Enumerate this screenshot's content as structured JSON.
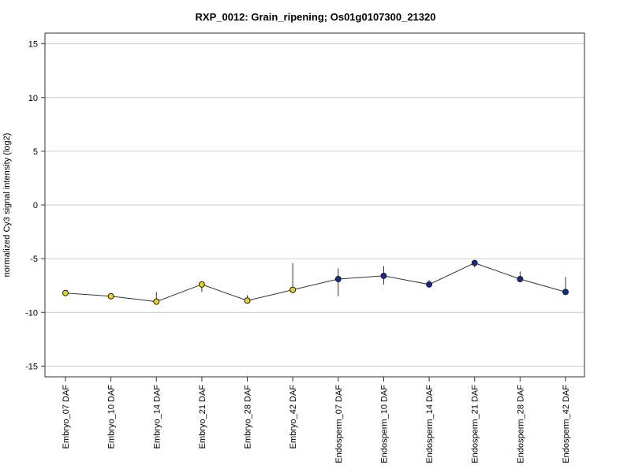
{
  "chart_data": {
    "type": "line",
    "title": "RXP_0012: Grain_ripening; Os01g0107300_21320",
    "xlabel": "",
    "ylabel": "normalized Cy3 signal intensity (log2)",
    "ylim": [
      -16,
      16
    ],
    "yticks": [
      15,
      10,
      5,
      0,
      -5,
      -10,
      -15
    ],
    "grid": true,
    "categories": [
      "Embryo_07 DAF",
      "Embryo_10 DAF",
      "Embryo_14 DAF",
      "Embryo_21 DAF",
      "Embryo_28 DAF",
      "Embryo_42 DAF",
      "Endosperm_07 DAF",
      "Endosperm_10 DAF",
      "Endosperm_14 DAF",
      "Endosperm_21 DAF",
      "Endosperm_28 DAF",
      "Endosperm_42 DAF"
    ],
    "series": [
      {
        "values": [
          -8.2,
          -8.5,
          -9.0,
          -7.4,
          -8.9,
          -7.9,
          -6.9,
          -6.6,
          -7.4,
          -5.4,
          -6.9,
          -8.1
        ],
        "err_low": [
          -8.5,
          -8.7,
          -9.1,
          -8.1,
          -9.1,
          -8.2,
          -8.5,
          -7.4,
          -7.7,
          -5.8,
          -7.2,
          -8.2
        ],
        "err_high": [
          -7.9,
          -8.3,
          -8.1,
          -7.2,
          -8.4,
          -5.4,
          -5.9,
          -5.7,
          -7.0,
          -5.1,
          -6.2,
          -6.7
        ],
        "marker_colors": [
          "#e8d41f",
          "#e8d41f",
          "#e8d41f",
          "#e8d41f",
          "#e8d41f",
          "#e8d41f",
          "#142a8c",
          "#142a8c",
          "#142a8c",
          "#142a8c",
          "#142a8c",
          "#142a8c"
        ]
      }
    ]
  }
}
